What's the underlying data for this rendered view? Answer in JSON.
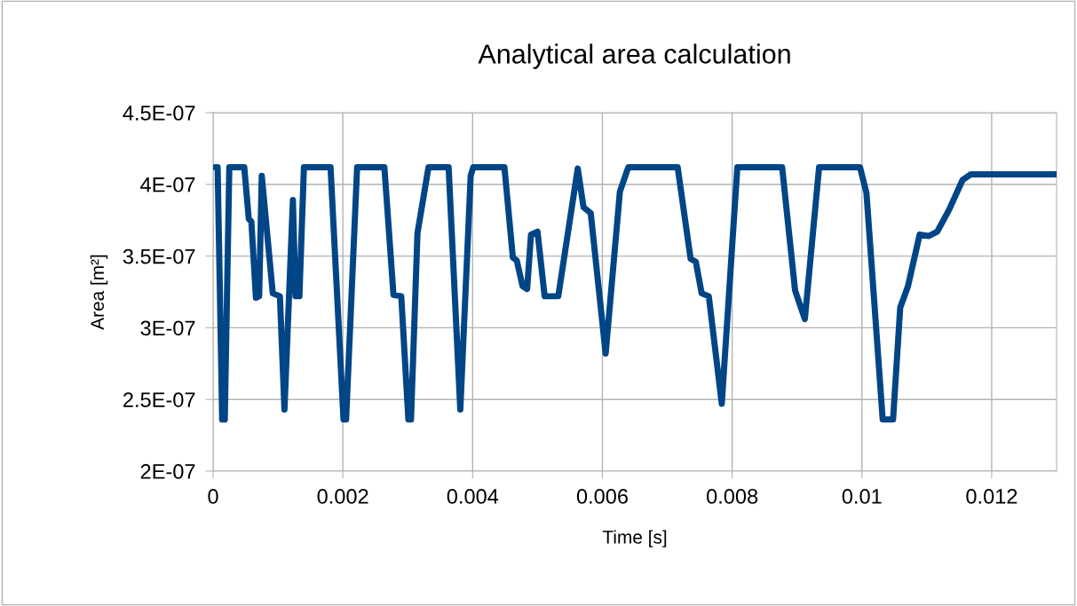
{
  "chart_data": {
    "type": "line",
    "title": "Analytical area calculation",
    "xlabel": "Time [s]",
    "ylabel": "Area [m²]",
    "x": [
      3e-05,
      7e-05,
      0.00014,
      0.00018,
      0.00025,
      0.00048,
      0.00055,
      0.00059,
      0.00066,
      0.00071,
      0.00075,
      0.00092,
      0.00103,
      0.0011,
      0.00123,
      0.00127,
      0.00133,
      0.0014,
      0.00181,
      0.00201,
      0.00205,
      0.00222,
      0.00264,
      0.00278,
      0.0029,
      0.00301,
      0.00305,
      0.00315,
      0.00332,
      0.00363,
      0.00381,
      0.00397,
      0.00401,
      0.00449,
      0.00462,
      0.00468,
      0.00477,
      0.00484,
      0.0049,
      0.005,
      0.00511,
      0.00532,
      0.00562,
      0.00571,
      0.00582,
      0.00605,
      0.00627,
      0.0064,
      0.00716,
      0.00736,
      0.00744,
      0.00753,
      0.00764,
      0.00784,
      0.00808,
      0.00877,
      0.00897,
      0.00912,
      0.00934,
      0.00997,
      0.01007,
      0.01032,
      0.01048,
      0.01059,
      0.01071,
      0.01089,
      0.01103,
      0.01116,
      0.01134,
      0.01155,
      0.01168,
      0.013
    ],
    "series": [
      {
        "color": "#004586",
        "values": [
          4.12e-07,
          4.12e-07,
          2.36e-07,
          2.36e-07,
          4.12e-07,
          4.12e-07,
          3.76e-07,
          3.74e-07,
          3.21e-07,
          3.22e-07,
          4.06e-07,
          3.24e-07,
          3.22e-07,
          2.43e-07,
          3.89e-07,
          3.22e-07,
          3.22e-07,
          4.12e-07,
          4.12e-07,
          2.36e-07,
          2.36e-07,
          4.12e-07,
          4.12e-07,
          3.23e-07,
          3.22e-07,
          2.36e-07,
          2.36e-07,
          3.66e-07,
          4.12e-07,
          4.12e-07,
          2.43e-07,
          4.06e-07,
          4.12e-07,
          4.12e-07,
          3.49e-07,
          3.47e-07,
          3.29e-07,
          3.27e-07,
          3.65e-07,
          3.67e-07,
          3.22e-07,
          3.22e-07,
          4.11e-07,
          3.84e-07,
          3.8e-07,
          2.82e-07,
          3.95e-07,
          4.12e-07,
          4.12e-07,
          3.48e-07,
          3.46e-07,
          3.24e-07,
          3.22e-07,
          2.47e-07,
          4.12e-07,
          4.12e-07,
          3.26e-07,
          3.06e-07,
          4.12e-07,
          4.12e-07,
          3.94e-07,
          2.36e-07,
          2.36e-07,
          3.14e-07,
          3.29e-07,
          3.65e-07,
          3.64e-07,
          3.67e-07,
          3.82e-07,
          4.03e-07,
          4.07e-07,
          4.07e-07
        ]
      }
    ],
    "xlim": [
      0,
      0.013
    ],
    "xticks": [
      0,
      0.002,
      0.004,
      0.006,
      0.008,
      0.01,
      0.012
    ],
    "ylim": [
      2e-07,
      4.5e-07
    ],
    "yticks": [
      {
        "value": 2e-07,
        "label": "2E-07"
      },
      {
        "value": 2.5e-07,
        "label": "2.5E-07"
      },
      {
        "value": 3e-07,
        "label": "3E-07"
      },
      {
        "value": 3.5e-07,
        "label": "3.5E-07"
      },
      {
        "value": 4e-07,
        "label": "4E-07"
      },
      {
        "value": 4.5e-07,
        "label": "4.5E-07"
      }
    ],
    "grid": true,
    "marker": "none",
    "line_style": "solid",
    "legend": false
  }
}
